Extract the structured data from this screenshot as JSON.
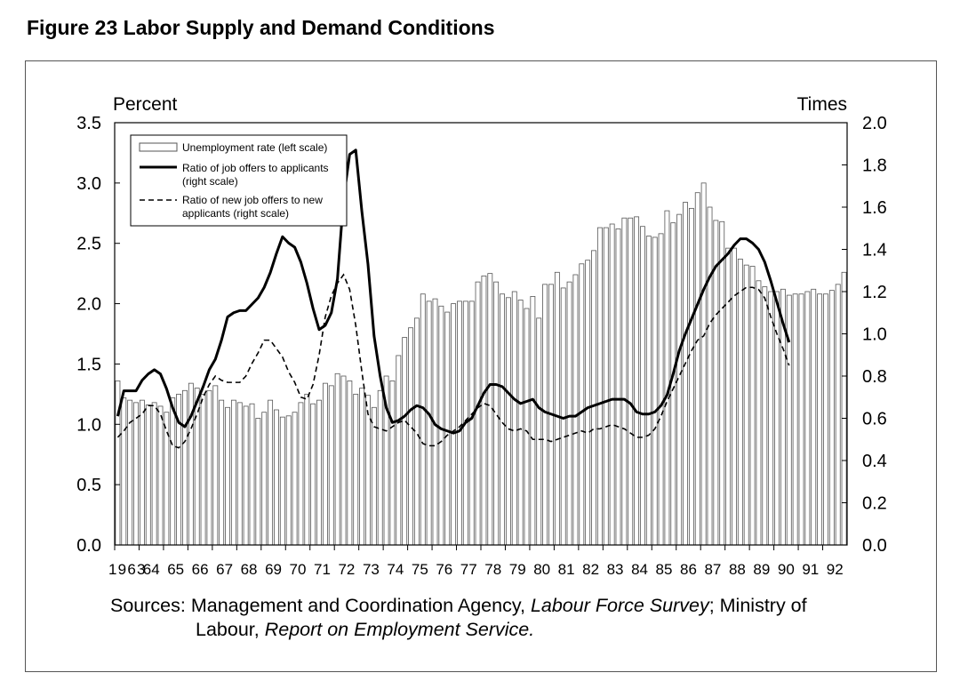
{
  "title": "Figure 23  Labor Supply and Demand Conditions",
  "sources": {
    "label": "Sources:",
    "part1": "Management and Coordination Agency,",
    "title1": "Labour Force Survey",
    "part2": "; Ministry of",
    "part3": "Labour,",
    "title2": "Report on Employment Service."
  },
  "colors": {
    "axis": "#000000",
    "bar_fill": "#ffffff",
    "bar_stroke": "#555555"
  },
  "chart_data": {
    "type": "bar",
    "left_axis_label": "Percent",
    "right_axis_label": "Times",
    "left_ylim": [
      0,
      3.5
    ],
    "right_ylim": [
      0,
      2.0
    ],
    "left_ticks": [
      "0.0",
      "0.5",
      "1.0",
      "1.5",
      "2.0",
      "2.5",
      "3.0",
      "3.5"
    ],
    "right_ticks": [
      "0.0",
      "0.2",
      "0.4",
      "0.6",
      "0.8",
      "1.0",
      "1.2",
      "1.4",
      "1.6",
      "1.8",
      "2.0"
    ],
    "year_labels": [
      "1963",
      "64",
      "65",
      "66",
      "67",
      "68",
      "69",
      "70",
      "71",
      "72",
      "73",
      "74",
      "75",
      "76",
      "77",
      "78",
      "79",
      "80",
      "81",
      "82",
      "83",
      "84",
      "85",
      "86",
      "87",
      "88",
      "89",
      "90",
      "91",
      "92"
    ],
    "frequency": "quarterly",
    "legend": [
      "Unemployment rate (left scale)",
      "Ratio of job offers to applicants",
      "(right scale)",
      "Ratio of new job offers to new",
      "applicants (right scale)"
    ],
    "series": [
      {
        "name": "Unemployment rate (left scale)",
        "type": "bar",
        "axis": "left",
        "values": [
          1.36,
          1.22,
          1.2,
          1.18,
          1.2,
          1.16,
          1.18,
          1.15,
          1.1,
          1.22,
          1.25,
          1.28,
          1.34,
          1.3,
          1.25,
          1.28,
          1.32,
          1.2,
          1.14,
          1.2,
          1.18,
          1.15,
          1.17,
          1.05,
          1.1,
          1.2,
          1.12,
          1.06,
          1.07,
          1.1,
          1.18,
          1.25,
          1.17,
          1.2,
          1.34,
          1.32,
          1.42,
          1.4,
          1.36,
          1.25,
          1.3,
          1.24,
          1.14,
          1.28,
          1.4,
          1.36,
          1.57,
          1.72,
          1.8,
          1.88,
          2.08,
          2.02,
          2.04,
          1.98,
          1.93,
          2.0,
          2.02,
          2.02,
          2.02,
          2.18,
          2.23,
          2.25,
          2.18,
          2.08,
          2.05,
          2.1,
          2.03,
          1.96,
          2.06,
          1.88,
          2.16,
          2.16,
          2.26,
          2.13,
          2.18,
          2.24,
          2.33,
          2.36,
          2.44,
          2.63,
          2.63,
          2.66,
          2.62,
          2.71,
          2.71,
          2.72,
          2.64,
          2.56,
          2.55,
          2.58,
          2.77,
          2.67,
          2.74,
          2.84,
          2.79,
          2.92,
          3.0,
          2.8,
          2.69,
          2.68,
          2.46,
          2.46,
          2.37,
          2.32,
          2.31,
          2.19,
          2.14,
          2.1,
          2.1,
          2.12,
          2.07,
          2.08,
          2.08,
          2.1,
          2.12,
          2.08,
          2.08,
          2.11,
          2.16,
          2.26
        ]
      },
      {
        "name": "Ratio of job offers to applicants",
        "type": "line",
        "style": "solid",
        "axis": "right",
        "values": [
          0.61,
          0.73,
          0.73,
          0.73,
          0.78,
          0.81,
          0.83,
          0.81,
          0.74,
          0.65,
          0.58,
          0.56,
          0.61,
          0.68,
          0.75,
          0.83,
          0.88,
          0.97,
          1.08,
          1.1,
          1.11,
          1.11,
          1.14,
          1.17,
          1.22,
          1.29,
          1.38,
          1.46,
          1.43,
          1.41,
          1.34,
          1.24,
          1.12,
          1.02,
          1.04,
          1.1,
          1.26,
          1.64,
          1.85,
          1.87,
          1.58,
          1.33,
          0.99,
          0.8,
          0.65,
          0.58,
          0.59,
          0.61,
          0.64,
          0.66,
          0.65,
          0.62,
          0.57,
          0.55,
          0.54,
          0.53,
          0.54,
          0.58,
          0.6,
          0.66,
          0.72,
          0.76,
          0.76,
          0.75,
          0.72,
          0.69,
          0.67,
          0.68,
          0.69,
          0.65,
          0.63,
          0.62,
          0.61,
          0.6,
          0.61,
          0.61,
          0.63,
          0.65,
          0.66,
          0.67,
          0.68,
          0.69,
          0.69,
          0.69,
          0.67,
          0.63,
          0.62,
          0.62,
          0.63,
          0.66,
          0.71,
          0.81,
          0.92,
          1.0,
          1.07,
          1.14,
          1.21,
          1.27,
          1.32,
          1.35,
          1.38,
          1.42,
          1.45,
          1.45,
          1.43,
          1.4,
          1.34,
          1.25,
          1.15,
          1.05,
          0.96
        ]
      },
      {
        "name": "Ratio of new job offers to new applicants (right scale)",
        "type": "line",
        "style": "dashed",
        "axis": "right",
        "values": [
          0.51,
          0.54,
          0.58,
          0.6,
          0.62,
          0.66,
          0.66,
          0.62,
          0.54,
          0.47,
          0.46,
          0.49,
          0.55,
          0.62,
          0.7,
          0.76,
          0.8,
          0.78,
          0.77,
          0.77,
          0.77,
          0.8,
          0.86,
          0.91,
          0.97,
          0.97,
          0.93,
          0.89,
          0.82,
          0.77,
          0.7,
          0.69,
          0.76,
          0.9,
          1.08,
          1.18,
          1.24,
          1.28,
          1.21,
          1.04,
          0.82,
          0.62,
          0.56,
          0.55,
          0.54,
          0.56,
          0.58,
          0.59,
          0.56,
          0.53,
          0.48,
          0.47,
          0.47,
          0.49,
          0.52,
          0.54,
          0.56,
          0.59,
          0.62,
          0.65,
          0.67,
          0.66,
          0.62,
          0.58,
          0.55,
          0.54,
          0.55,
          0.54,
          0.5,
          0.5,
          0.5,
          0.49,
          0.5,
          0.51,
          0.52,
          0.53,
          0.54,
          0.53,
          0.55,
          0.55,
          0.56,
          0.57,
          0.56,
          0.55,
          0.53,
          0.51,
          0.51,
          0.52,
          0.55,
          0.61,
          0.68,
          0.74,
          0.8,
          0.86,
          0.92,
          0.97,
          0.99,
          1.05,
          1.09,
          1.12,
          1.15,
          1.18,
          1.2,
          1.22,
          1.22,
          1.21,
          1.17,
          1.08,
          1.0,
          0.93,
          0.85
        ]
      }
    ]
  }
}
